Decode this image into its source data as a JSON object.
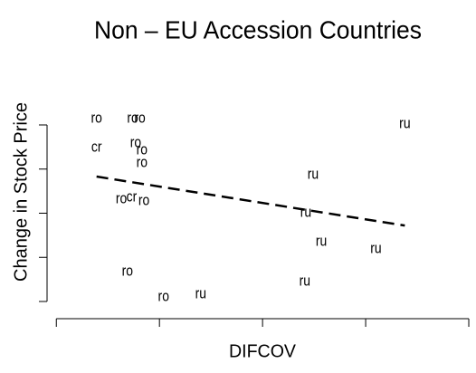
{
  "chart_data": {
    "type": "scatter",
    "title": "Non – EU Accession Countries",
    "x_label": "DIFCOV",
    "y_label": "Change in Stock Price",
    "xlim": [
      -0.09,
      4.07
    ],
    "ylim": [
      -0.4,
      5.0
    ],
    "xticks": [
      0,
      1,
      2,
      3,
      4
    ],
    "yticks": [
      0,
      1,
      2,
      3,
      4
    ],
    "series": [
      {
        "x": [
          0.39,
          0.74,
          0.81,
          3.38,
          0.39,
          0.77,
          0.83,
          0.83,
          2.49,
          0.63,
          0.73,
          0.85,
          2.42,
          2.57,
          3.1,
          0.69,
          2.41,
          1.04,
          1.4
        ],
        "values": [
          4.14,
          4.14,
          4.14,
          4.02,
          3.49,
          3.59,
          3.43,
          3.14,
          2.87,
          2.32,
          2.36,
          2.28,
          2.01,
          1.35,
          1.19,
          0.68,
          0.45,
          0.1,
          0.16
        ],
        "labels": [
          "ro",
          "ro",
          "ro",
          "ru",
          "cr",
          "ro",
          "ro",
          "ro",
          "ru",
          "ro",
          "cr",
          "ro",
          "ru",
          "ru",
          "ru",
          "ro",
          "ru",
          "ro",
          "ru"
        ]
      }
    ],
    "fit_line": {
      "x": [
        0.39,
        3.38
      ],
      "y": [
        2.83,
        1.72
      ],
      "color": "#000000"
    }
  }
}
